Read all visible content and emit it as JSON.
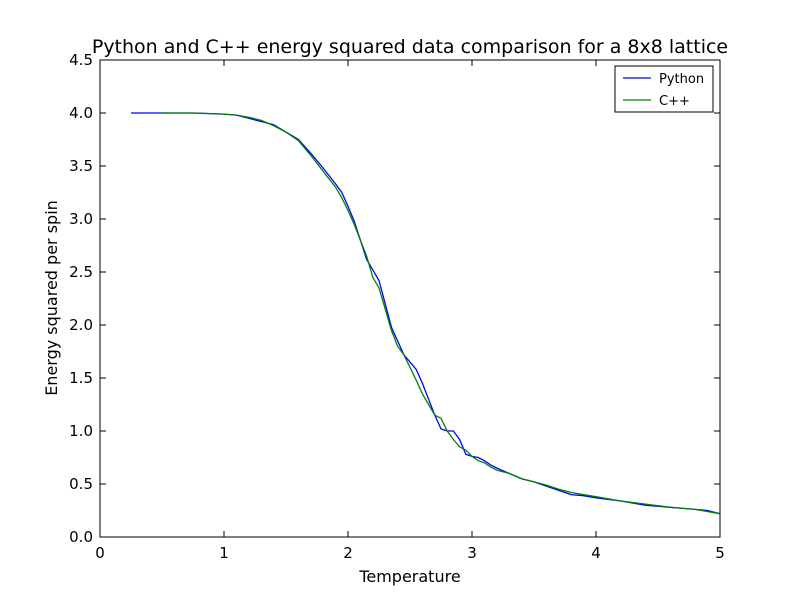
{
  "chart_data": {
    "type": "line",
    "title": "Python and C++ energy squared data comparison for a 8x8 lattice",
    "xlabel": "Temperature",
    "ylabel": "Energy squared per spin",
    "xlim": [
      0,
      5
    ],
    "ylim": [
      0,
      4.5
    ],
    "xticks": [
      0,
      1,
      2,
      3,
      4,
      5
    ],
    "xtick_labels": [
      "0",
      "1",
      "2",
      "3",
      "4",
      "5"
    ],
    "yticks": [
      0,
      0.5,
      1.0,
      1.5,
      2.0,
      2.5,
      3.0,
      3.5,
      4.0,
      4.5
    ],
    "ytick_labels": [
      "0.0",
      "0.5",
      "1.0",
      "1.5",
      "2.0",
      "2.5",
      "3.0",
      "3.5",
      "4.0",
      "4.5"
    ],
    "grid": false,
    "legend_position": "top-right",
    "series": [
      {
        "name": "Python",
        "color": "#0000ff",
        "x": [
          0.25,
          0.5,
          0.75,
          1.0,
          1.1,
          1.2,
          1.3,
          1.4,
          1.5,
          1.6,
          1.7,
          1.8,
          1.9,
          1.95,
          2.0,
          2.05,
          2.1,
          2.15,
          2.2,
          2.25,
          2.3,
          2.35,
          2.4,
          2.45,
          2.5,
          2.55,
          2.6,
          2.65,
          2.7,
          2.75,
          2.8,
          2.85,
          2.9,
          2.95,
          3.0,
          3.05,
          3.1,
          3.15,
          3.2,
          3.3,
          3.4,
          3.5,
          3.6,
          3.7,
          3.8,
          3.9,
          4.0,
          4.2,
          4.4,
          4.6,
          4.8,
          4.9,
          5.0
        ],
        "values": [
          4.0,
          4.0,
          4.0,
          3.99,
          3.98,
          3.95,
          3.92,
          3.89,
          3.82,
          3.75,
          3.62,
          3.48,
          3.33,
          3.25,
          3.12,
          2.98,
          2.8,
          2.62,
          2.52,
          2.42,
          2.2,
          1.98,
          1.85,
          1.72,
          1.65,
          1.58,
          1.45,
          1.3,
          1.15,
          1.02,
          1.0,
          1.0,
          0.92,
          0.78,
          0.76,
          0.75,
          0.72,
          0.68,
          0.65,
          0.6,
          0.55,
          0.52,
          0.48,
          0.44,
          0.4,
          0.39,
          0.37,
          0.34,
          0.3,
          0.28,
          0.26,
          0.25,
          0.22
        ]
      },
      {
        "name": "C++",
        "color": "#008000",
        "x": [
          0.5,
          0.75,
          1.0,
          1.1,
          1.2,
          1.3,
          1.4,
          1.5,
          1.6,
          1.7,
          1.8,
          1.9,
          1.95,
          2.0,
          2.05,
          2.1,
          2.15,
          2.2,
          2.25,
          2.3,
          2.35,
          2.4,
          2.45,
          2.5,
          2.55,
          2.6,
          2.65,
          2.7,
          2.75,
          2.8,
          2.85,
          2.9,
          2.95,
          3.0,
          3.05,
          3.1,
          3.15,
          3.2,
          3.3,
          3.4,
          3.5,
          3.6,
          3.7,
          3.8,
          3.9,
          4.0,
          4.2,
          4.4,
          4.6,
          4.8,
          5.0
        ],
        "values": [
          4.0,
          4.0,
          3.99,
          3.98,
          3.96,
          3.93,
          3.88,
          3.82,
          3.74,
          3.6,
          3.45,
          3.3,
          3.2,
          3.08,
          2.95,
          2.8,
          2.65,
          2.45,
          2.35,
          2.15,
          1.95,
          1.8,
          1.72,
          1.6,
          1.48,
          1.35,
          1.25,
          1.15,
          1.12,
          1.0,
          0.92,
          0.85,
          0.82,
          0.76,
          0.72,
          0.7,
          0.66,
          0.63,
          0.6,
          0.55,
          0.52,
          0.49,
          0.45,
          0.42,
          0.4,
          0.38,
          0.34,
          0.31,
          0.28,
          0.26,
          0.22
        ]
      }
    ]
  }
}
